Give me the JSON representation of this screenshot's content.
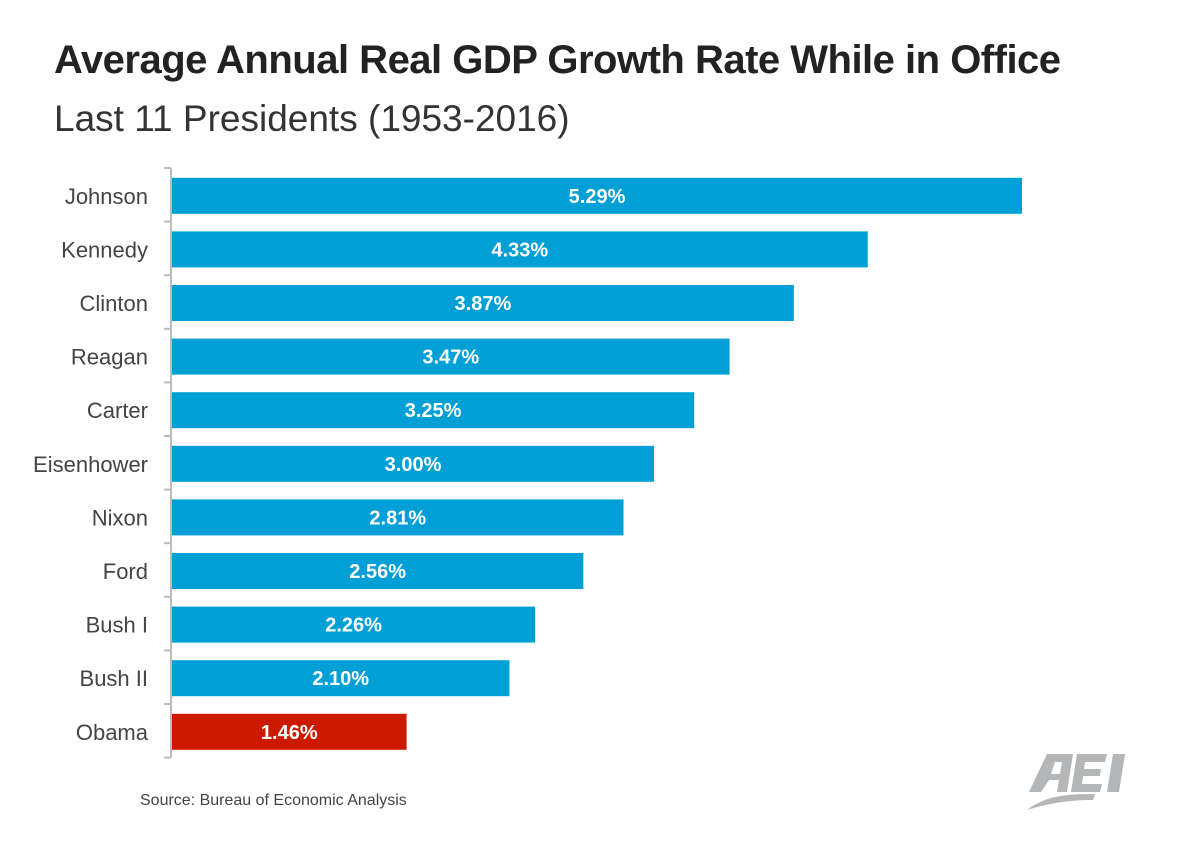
{
  "chart_data": {
    "type": "bar",
    "orientation": "horizontal",
    "title": "Average Annual Real GDP Growth Rate While in Office",
    "subtitle": "Last 11 Presidents (1953-2016)",
    "categories": [
      "Johnson",
      "Kennedy",
      "Clinton",
      "Reagan",
      "Carter",
      "Eisenhower",
      "Nixon",
      "Ford",
      "Bush I",
      "Bush II",
      "Obama"
    ],
    "values": [
      5.29,
      4.33,
      3.87,
      3.47,
      3.25,
      3.0,
      2.81,
      2.56,
      2.26,
      2.1,
      1.46
    ],
    "data_labels": [
      "5.29%",
      "4.33%",
      "3.87%",
      "3.47%",
      "3.25%",
      "3.00%",
      "2.81%",
      "2.56%",
      "2.26%",
      "2.10%",
      "1.46%"
    ],
    "xlim": [
      0,
      5.29
    ],
    "grid": false,
    "colors": {
      "default": "#009fd6",
      "highlight": "#cc1a00",
      "highlight_category": "Obama"
    }
  },
  "source": "Source: Bureau of Economic Analysis",
  "logo": {
    "text": "AEI",
    "color": "#b5b6b8"
  }
}
